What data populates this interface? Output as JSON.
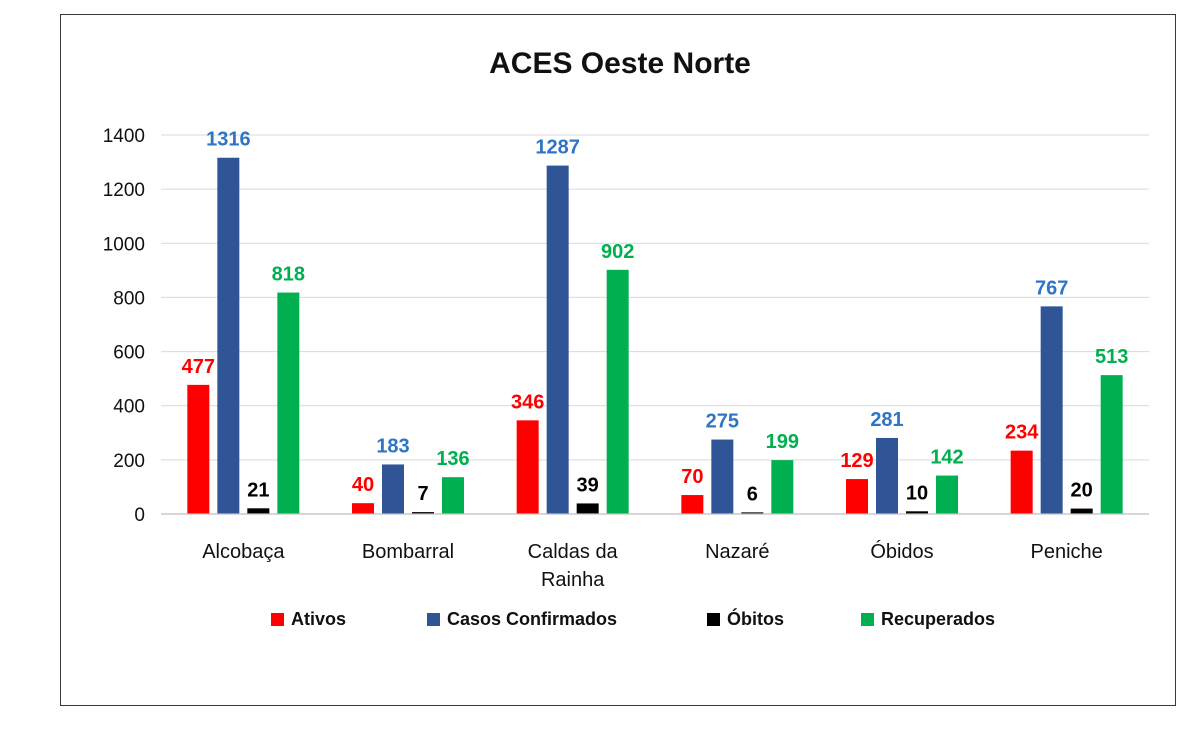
{
  "chart_data": {
    "type": "bar",
    "title": "ACES Oeste Norte",
    "xlabel": "",
    "ylabel": "",
    "ylim": [
      0,
      1400
    ],
    "yticks": [
      0,
      200,
      400,
      600,
      800,
      1000,
      1200,
      1400
    ],
    "grid": true,
    "legend_position": "bottom",
    "categories": [
      [
        "Alcobaça"
      ],
      [
        "Bombarral"
      ],
      [
        "Caldas da",
        "Rainha"
      ],
      [
        "Nazaré"
      ],
      [
        "Óbidos"
      ],
      [
        "Peniche"
      ]
    ],
    "series": [
      {
        "name": "Ativos",
        "color": "#ff0000",
        "label_color": "#ff0000",
        "values": [
          477,
          40,
          346,
          70,
          129,
          234
        ]
      },
      {
        "name": "Casos Confirmados",
        "color": "#2f5597",
        "label_color": "#2e75c6",
        "values": [
          1316,
          183,
          1287,
          275,
          281,
          767
        ]
      },
      {
        "name": "Óbitos",
        "color": "#000000",
        "label_color": "#000000",
        "values": [
          21,
          7,
          39,
          6,
          10,
          20
        ]
      },
      {
        "name": "Recuperados",
        "color": "#00b050",
        "label_color": "#00b050",
        "values": [
          818,
          136,
          902,
          199,
          142,
          513
        ]
      }
    ]
  }
}
